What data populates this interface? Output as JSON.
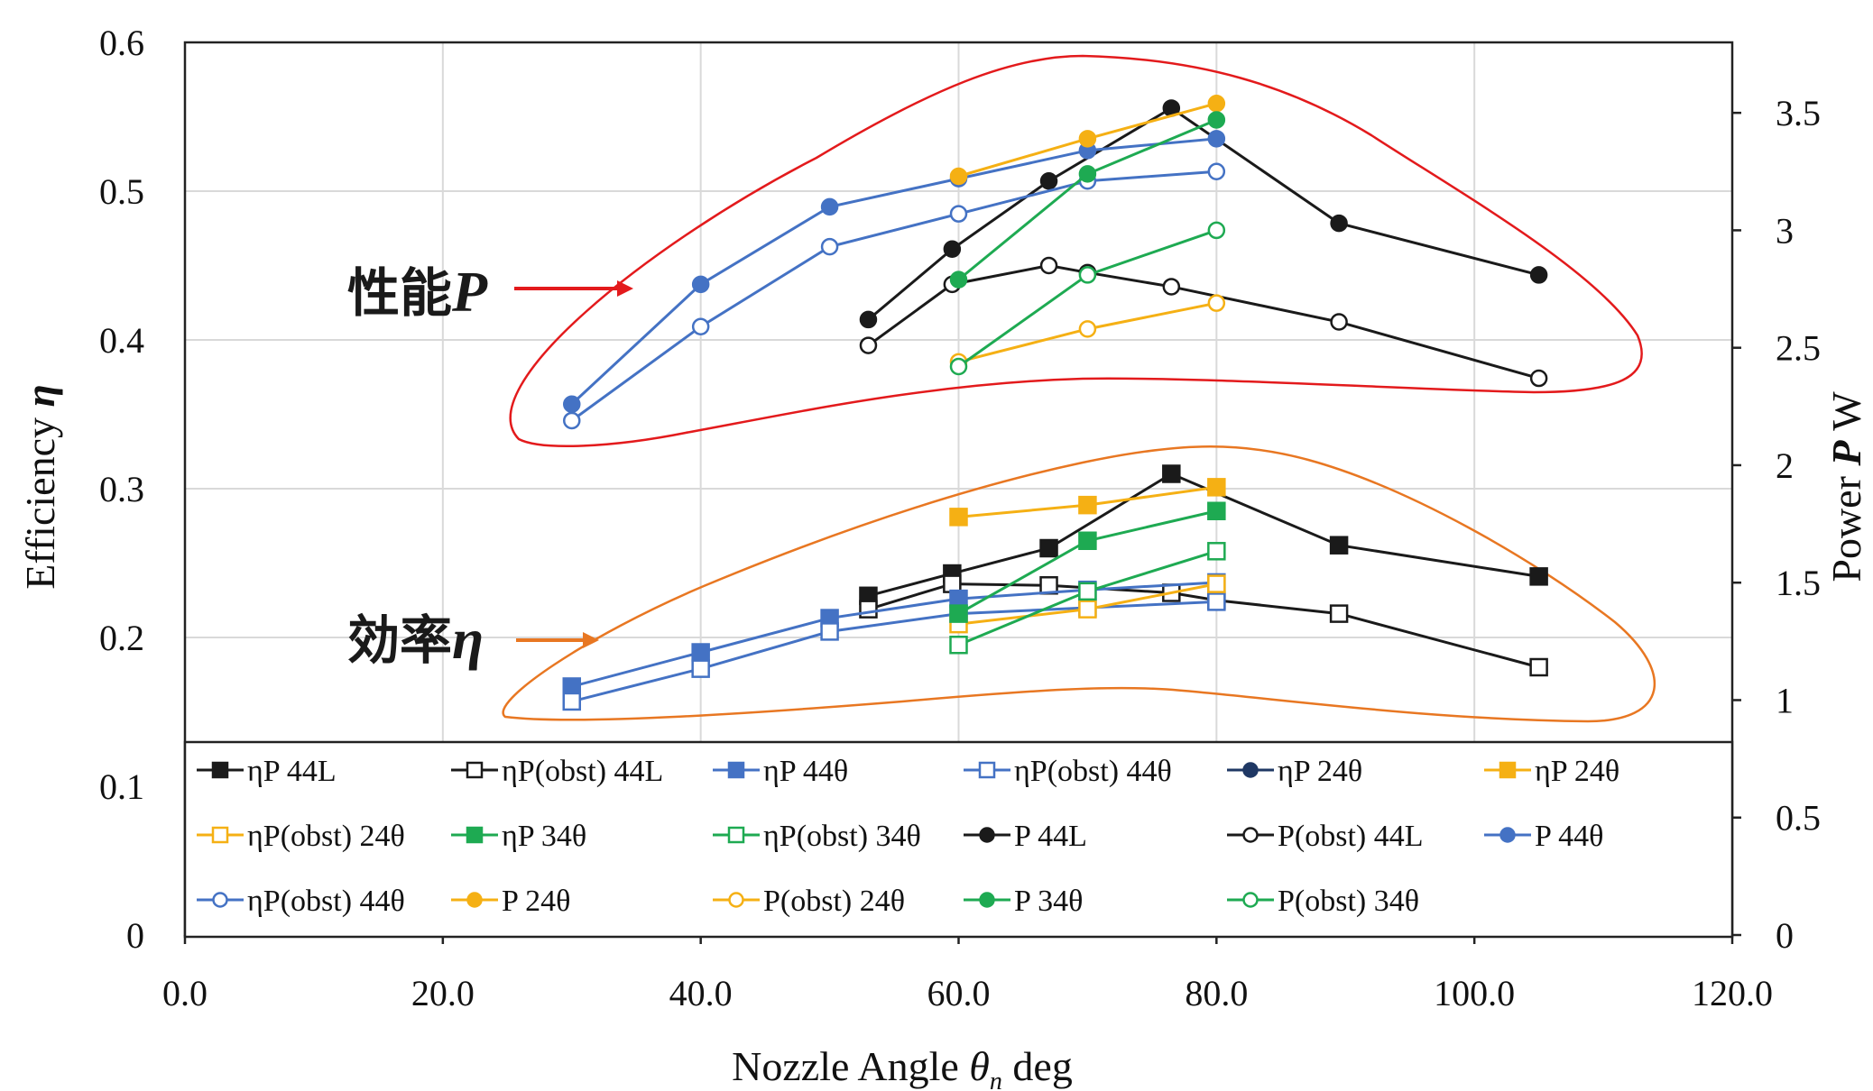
{
  "chart_data": {
    "type": "line",
    "xlabel": "Nozzle Angle θn deg",
    "xlabel_parts": {
      "prefix": "Nozzle Angle ",
      "symbol": "θ",
      "subscript": "n",
      "suffix": " deg"
    },
    "ylabel": "Efficiency η",
    "ylabel_parts": {
      "text": "Efficiency ",
      "symbol": "η"
    },
    "y2label": "Power P W",
    "y2label_parts": {
      "text": "Power ",
      "symbol": "P",
      "unit": " W"
    },
    "xlim": [
      0,
      120
    ],
    "ylim": [
      0,
      0.6
    ],
    "y2lim": [
      0,
      3.8
    ],
    "x_ticks": [
      "0.0",
      "20.0",
      "40.0",
      "60.0",
      "80.0",
      "100.0",
      "120.0"
    ],
    "y_ticks": [
      "0",
      "0.1",
      "0.2",
      "0.3",
      "0.4",
      "0.5",
      "0.6"
    ],
    "y2_ticks": [
      "0",
      "0.5",
      "1",
      "1.5",
      "2",
      "2.5",
      "3",
      "3.5"
    ],
    "grid": true,
    "legend_position": "bottom-inside",
    "annotations": [
      {
        "id": "performance",
        "label": "性能",
        "symbol": "P",
        "color": "#e31a1c"
      },
      {
        "id": "efficiency",
        "label": "効率",
        "symbol": "η",
        "color": "#e87722"
      }
    ],
    "series": [
      {
        "name": "ηP 44L",
        "axis": "left",
        "marker": "square",
        "filled": true,
        "color": "#1a1a1a",
        "x": [
          53,
          59.5,
          67,
          76.5,
          89.5,
          105
        ],
        "y": [
          0.228,
          0.243,
          0.26,
          0.31,
          0.262,
          0.241
        ]
      },
      {
        "name": "ηP(obst) 44L",
        "axis": "left",
        "marker": "square",
        "filled": false,
        "color": "#1a1a1a",
        "x": [
          53,
          59.5,
          67,
          76.5,
          80,
          89.5,
          105
        ],
        "y": [
          0.219,
          0.236,
          0.235,
          0.23,
          0.225,
          0.216,
          0.18
        ]
      },
      {
        "name": "ηP 44θ",
        "axis": "left",
        "marker": "square",
        "filled": true,
        "color": "#4472c4",
        "x": [
          30,
          40,
          50,
          60,
          70,
          80
        ],
        "y": [
          0.167,
          0.19,
          0.213,
          0.226,
          0.232,
          0.237
        ]
      },
      {
        "name": "ηP(obst) 44θ",
        "axis": "left",
        "marker": "square",
        "filled": false,
        "color": "#4472c4",
        "x": [
          30,
          40,
          50,
          60,
          70,
          80
        ],
        "y": [
          0.157,
          0.179,
          0.204,
          0.216,
          0.22,
          0.224
        ]
      },
      {
        "name": "ηP 24θ",
        "axis": "left",
        "marker": "circle",
        "filled": true,
        "color": "#1f3864",
        "x": [],
        "y": []
      },
      {
        "name": "ηP 24θ",
        "axis": "left",
        "marker": "square",
        "filled": true,
        "color": "#f5b014",
        "x": [
          60,
          70,
          80
        ],
        "y": [
          0.281,
          0.289,
          0.301
        ]
      },
      {
        "name": "ηP(obst) 24θ",
        "axis": "left",
        "marker": "square",
        "filled": false,
        "color": "#f5b014",
        "x": [
          60,
          70,
          80
        ],
        "y": [
          0.209,
          0.219,
          0.236
        ]
      },
      {
        "name": "ηP 34θ",
        "axis": "left",
        "marker": "square",
        "filled": true,
        "color": "#1eaa52",
        "x": [
          60,
          70,
          80
        ],
        "y": [
          0.216,
          0.265,
          0.285
        ]
      },
      {
        "name": "ηP(obst) 34θ",
        "axis": "left",
        "marker": "square",
        "filled": false,
        "color": "#1eaa52",
        "x": [
          60,
          70,
          80
        ],
        "y": [
          0.195,
          0.231,
          0.258
        ]
      },
      {
        "name": "P 44L",
        "axis": "right",
        "marker": "circle",
        "filled": true,
        "color": "#1a1a1a",
        "x": [
          53,
          59.5,
          67,
          76.5,
          89.5,
          105
        ],
        "y": [
          2.62,
          2.92,
          3.21,
          3.52,
          3.03,
          2.81
        ]
      },
      {
        "name": "P(obst) 44L",
        "axis": "right",
        "marker": "circle",
        "filled": false,
        "color": "#1a1a1a",
        "x": [
          53,
          59.5,
          67,
          70,
          76.5,
          89.5,
          105
        ],
        "y": [
          2.51,
          2.77,
          2.85,
          2.82,
          2.76,
          2.61,
          2.37
        ]
      },
      {
        "name": "P 44θ",
        "axis": "right",
        "marker": "circle",
        "filled": true,
        "color": "#4472c4",
        "x": [
          30,
          40,
          50,
          60,
          70,
          80
        ],
        "y": [
          2.26,
          2.77,
          3.1,
          3.22,
          3.34,
          3.39
        ]
      },
      {
        "name": "ηP(obst) 44θ",
        "axis": "right",
        "marker": "circle",
        "filled": false,
        "color": "#4472c4",
        "x": [
          30,
          40,
          50,
          60,
          70,
          80
        ],
        "y": [
          2.19,
          2.59,
          2.93,
          3.07,
          3.21,
          3.25
        ]
      },
      {
        "name": "P 24θ",
        "axis": "right",
        "marker": "circle",
        "filled": true,
        "color": "#f5b014",
        "x": [
          60,
          70,
          80
        ],
        "y": [
          3.23,
          3.39,
          3.54
        ]
      },
      {
        "name": "P(obst) 24θ",
        "axis": "right",
        "marker": "circle",
        "filled": false,
        "color": "#f5b014",
        "x": [
          60,
          70,
          80
        ],
        "y": [
          2.44,
          2.58,
          2.69
        ]
      },
      {
        "name": "P 34θ",
        "axis": "right",
        "marker": "circle",
        "filled": true,
        "color": "#1eaa52",
        "x": [
          60,
          70,
          80
        ],
        "y": [
          2.79,
          3.24,
          3.47
        ]
      },
      {
        "name": "P(obst) 34θ",
        "axis": "right",
        "marker": "circle",
        "filled": false,
        "color": "#1eaa52",
        "x": [
          60,
          70,
          80
        ],
        "y": [
          2.42,
          2.81,
          3.0
        ]
      }
    ]
  }
}
